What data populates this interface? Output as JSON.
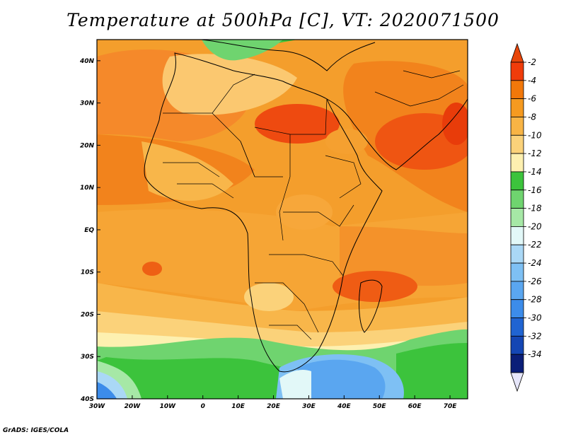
{
  "title": "Temperature at 500hPa [C], VT: 2020071500",
  "credit": "GrADS: IGES/COLA",
  "map": {
    "variable": "Temperature at 500hPa",
    "units": "C",
    "valid_time": "2020071500",
    "lon_range": [
      -30,
      75
    ],
    "lat_range": [
      -40,
      45
    ],
    "lat_ticks": [
      "40N",
      "30N",
      "20N",
      "10N",
      "EQ",
      "10S",
      "20S",
      "30S",
      "40S"
    ],
    "lon_ticks": [
      "30W",
      "20W",
      "10W",
      "0",
      "10E",
      "20E",
      "30E",
      "40E",
      "50E",
      "60E",
      "70E"
    ]
  },
  "colorbar": {
    "labels": [
      "-2",
      "-4",
      "-6",
      "-8",
      "-10",
      "-12",
      "-14",
      "-16",
      "-18",
      "-20",
      "-22",
      "-24",
      "-26",
      "-28",
      "-30",
      "-32",
      "-34"
    ],
    "colors": [
      "#f03c0a",
      "#f2780a",
      "#f59a20",
      "#f8b445",
      "#fbd27a",
      "#fdf0b0",
      "#3cc33c",
      "#6fd46f",
      "#a6e8a6",
      "#e2f8f8",
      "#aad8f6",
      "#7ec0f4",
      "#5aa6f0",
      "#3c8cea",
      "#2064d2",
      "#1446b4",
      "#0a1e78"
    ]
  }
}
